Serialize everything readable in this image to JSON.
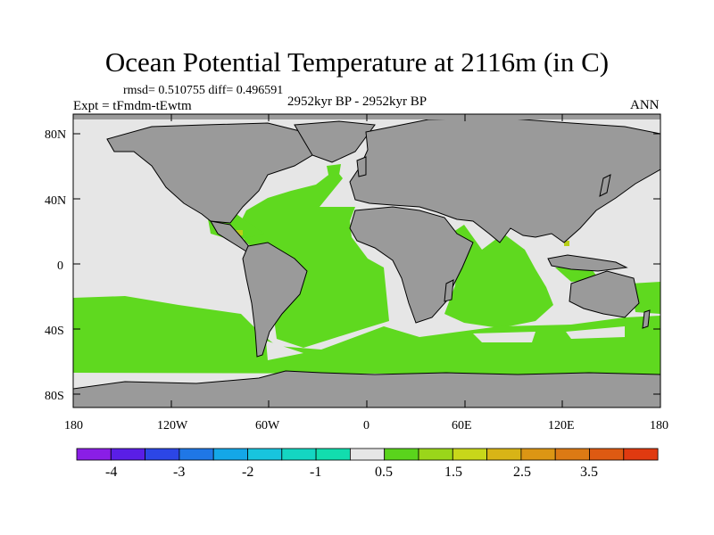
{
  "title": "Ocean Potential Temperature at 2116m (in C)",
  "stats": "rmsd= 0.510755 diff= 0.496591",
  "period": "2952kyr BP - 2952kyr BP",
  "experiment": "Expt = tFmdm-tEwtm",
  "season": "ANN",
  "axes": {
    "lat_labels": [
      "80N",
      "40N",
      "0",
      "40S",
      "80S"
    ],
    "lon_labels": [
      "180",
      "120W",
      "60W",
      "0",
      "60E",
      "120E",
      "180"
    ]
  },
  "colorbar": {
    "colors": [
      "#8a1ee6",
      "#5a1ee6",
      "#2c46e6",
      "#1f77e6",
      "#14a7e8",
      "#18c4de",
      "#14d6c2",
      "#12ddae",
      "#e6e6e6",
      "#5ad41c",
      "#9ad61a",
      "#c8d71a",
      "#d8b416",
      "#dc9614",
      "#dc7a14",
      "#de5a12",
      "#e03a10"
    ],
    "labels": [
      "-4",
      "-3",
      "-2",
      "-1",
      "0.5",
      "1.5",
      "2.5",
      "3.5"
    ]
  },
  "legend_colors": {
    "land": "#9a9a9a",
    "near_zero": "#e6e6e6",
    "warm": "#5fd91f",
    "warmer": "#b8cf18",
    "coast": "#000000"
  }
}
